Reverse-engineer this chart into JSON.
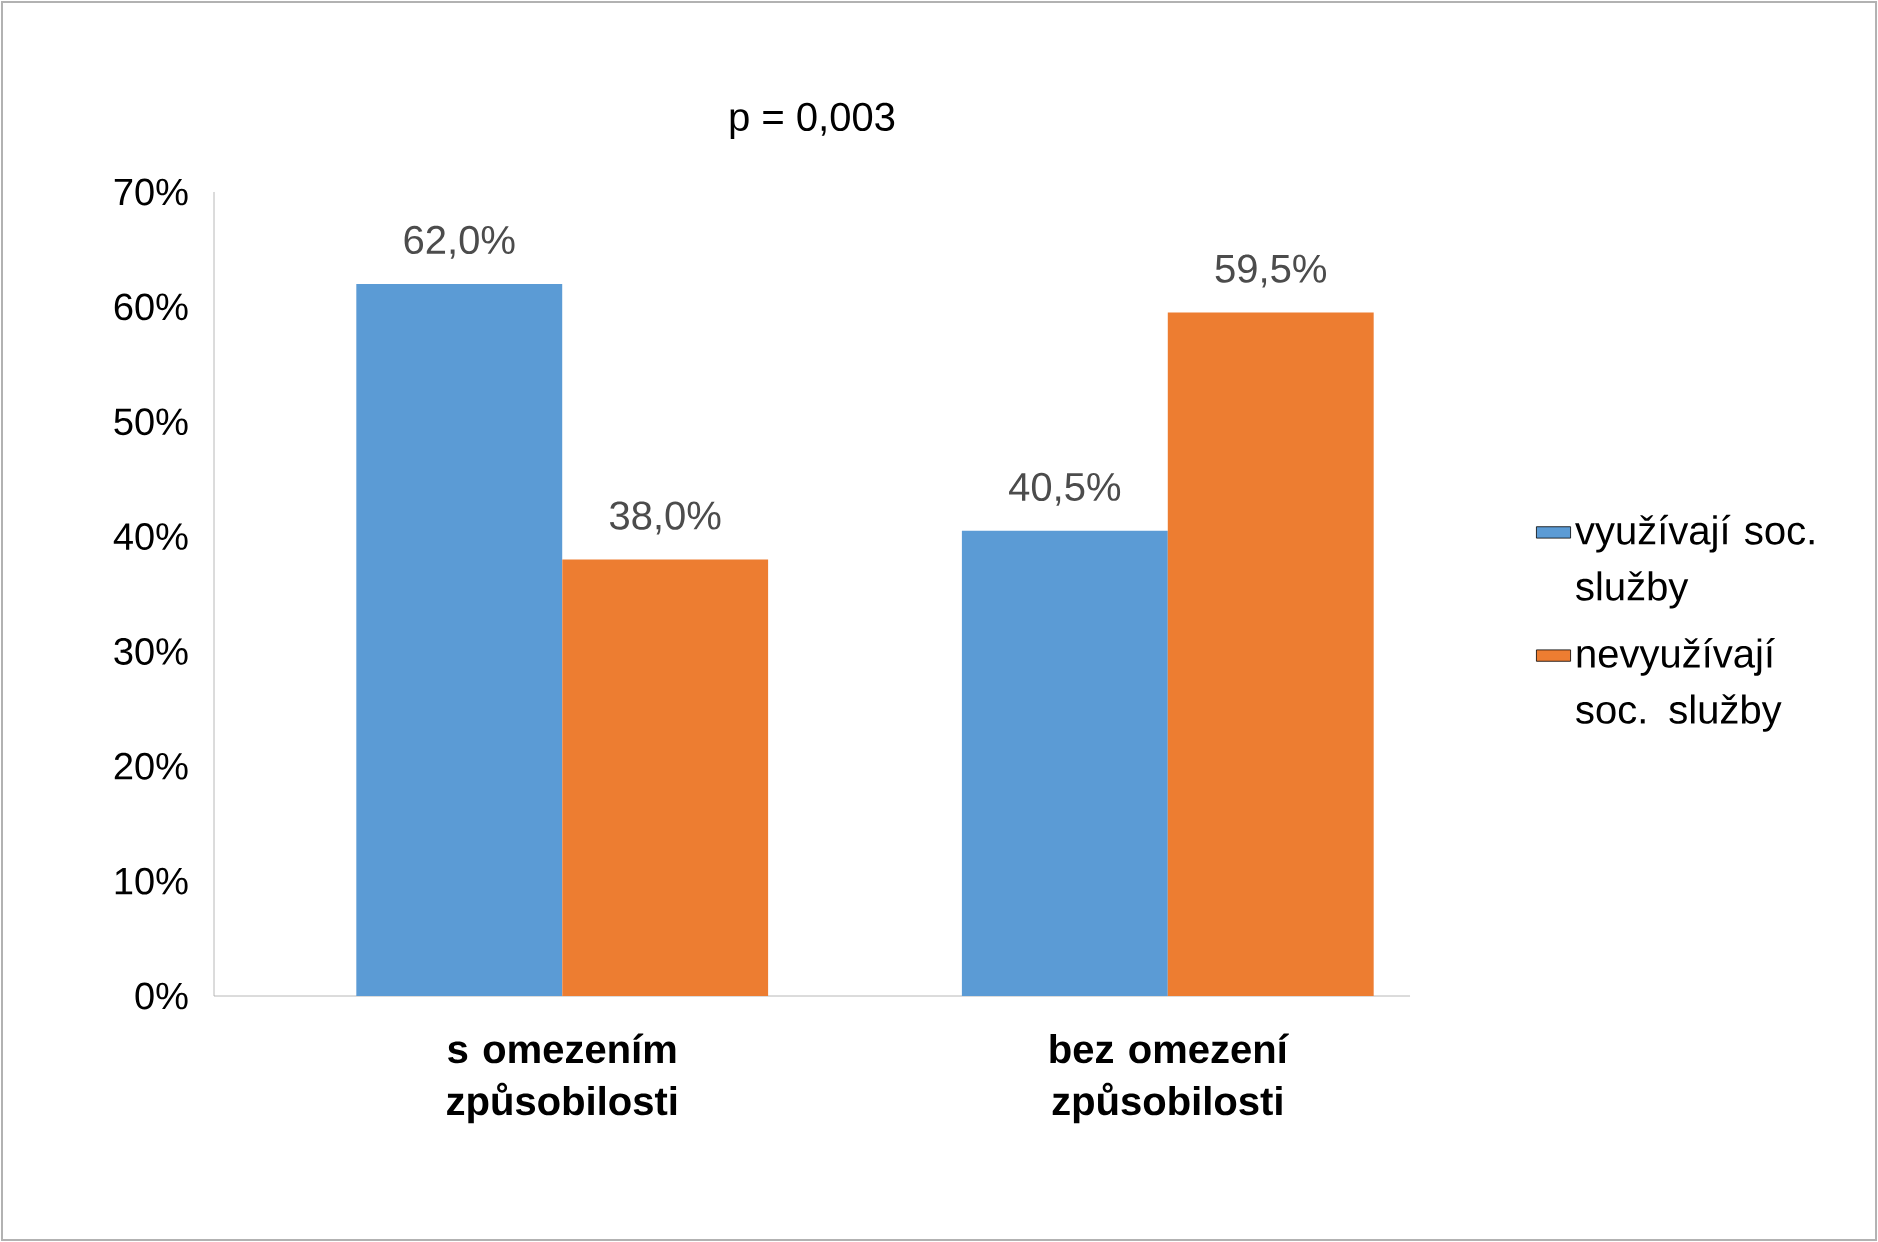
{
  "chart_data": {
    "type": "bar",
    "title": "p = 0,003",
    "categories": [
      "s omezením způsobilosti",
      "bez omezení způsobilosti"
    ],
    "series": [
      {
        "name": "využívají soc. služby",
        "color": "#5b9bd5",
        "values": [
          62.0,
          40.5
        ],
        "value_labels": [
          "62,0%",
          "40,5%"
        ]
      },
      {
        "name": "nevyužívají soc. služby",
        "color": "#ed7d31",
        "values": [
          38.0,
          59.5
        ],
        "value_labels": [
          "38,0%",
          "59,5%"
        ]
      }
    ],
    "ylim": [
      0,
      70
    ],
    "yticks": [
      {
        "value": 0,
        "label": "0%"
      },
      {
        "value": 10,
        "label": "10%"
      },
      {
        "value": 20,
        "label": "20%"
      },
      {
        "value": 30,
        "label": "30%"
      },
      {
        "value": 40,
        "label": "40%"
      },
      {
        "value": 50,
        "label": "50%"
      },
      {
        "value": 60,
        "label": "60%"
      },
      {
        "value": 70,
        "label": "70%"
      }
    ],
    "legend": "right"
  }
}
